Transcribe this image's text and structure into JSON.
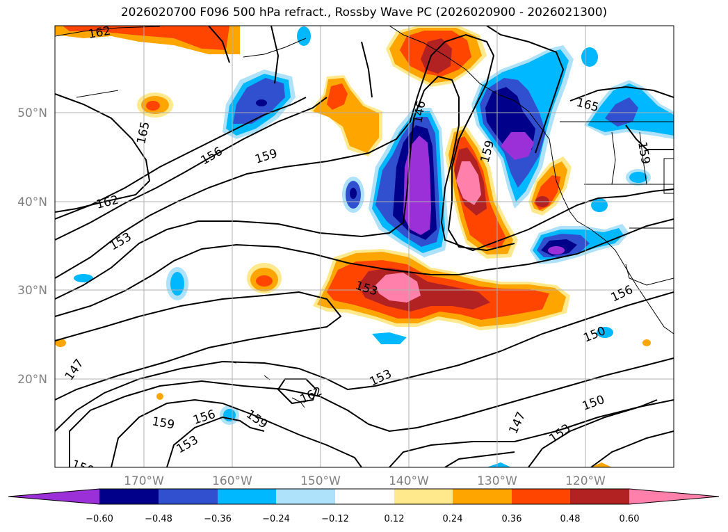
{
  "title": "2026020700 F096 500 hPa refract., Rossby Wave PC (2026020900 - 2026021300)",
  "latitude_labels": [
    "50°N",
    "40°N",
    "30°N",
    "20°N"
  ],
  "longitude_labels": [
    "170°W",
    "160°W",
    "150°W",
    "140°W",
    "130°W",
    "120°W"
  ],
  "contour_labels": [
    "162",
    "165",
    "156",
    "159",
    "162",
    "153",
    "153",
    "147",
    "150",
    "159",
    "156",
    "153",
    "159",
    "162",
    "153",
    "150",
    "150",
    "147",
    "153",
    "156",
    "165",
    "159"
  ],
  "colorbar": {
    "tick_labels": [
      "−0.60",
      "−0.48",
      "−0.36",
      "−0.24",
      "−0.12",
      "0.12",
      "0.24",
      "0.36",
      "0.48",
      "0.60"
    ],
    "colors": [
      "#9b30d9",
      "#00008b",
      "#3050d0",
      "#00b8ff",
      "#aee2fa",
      "#ffffff",
      "#ffe98c",
      "#ffa500",
      "#ff4500",
      "#b22222",
      "#ff80aa"
    ]
  }
}
